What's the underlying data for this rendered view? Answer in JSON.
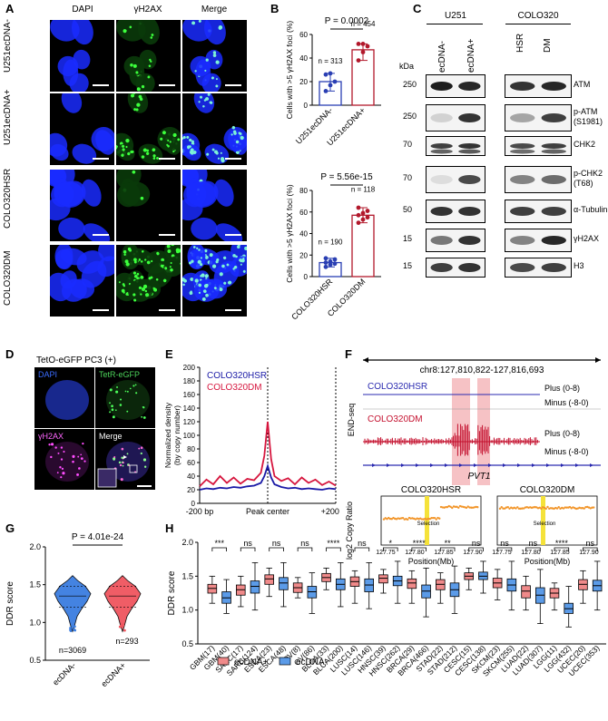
{
  "panel_letters": [
    "A",
    "B",
    "C",
    "D",
    "E",
    "F",
    "G",
    "H"
  ],
  "panel_a": {
    "column_headers": [
      "DAPI",
      "γH2AX",
      "Merge"
    ],
    "row_labels": [
      "U251ecDNA-",
      "U251ecDNA+",
      "COLO320HSR",
      "COLO320DM"
    ]
  },
  "panel_b": {
    "charts": [
      {
        "ylabel": "Cells with >5 γH2AX foci (%)",
        "ylim": [
          0,
          60
        ],
        "yticks": [
          "0",
          "20",
          "40",
          "60"
        ],
        "categories": [
          "U251ecDNA-",
          "U251ecDNA+"
        ],
        "means": [
          20,
          47
        ],
        "n_labels": [
          "n = 313",
          "n = 454"
        ],
        "pvalue": "P = 0.0002",
        "colors": [
          "#2a3fb3",
          "#b2182b"
        ],
        "points": [
          [
            12,
            17,
            20,
            26,
            27
          ],
          [
            38,
            45,
            50,
            52,
            52
          ]
        ]
      },
      {
        "ylabel": "Cells with >5 γH2AX foci (%)",
        "ylim": [
          0,
          80
        ],
        "yticks": [
          "0",
          "20",
          "40",
          "60",
          "80"
        ],
        "categories": [
          "COLO320HSR",
          "COLO320DM"
        ],
        "means": [
          13,
          57
        ],
        "n_labels": [
          "n = 190",
          "n = 118"
        ],
        "pvalue": "P = 5.56e-15",
        "colors": [
          "#2a3fb3",
          "#b2182b"
        ],
        "points": [
          [
            9,
            11,
            12,
            13,
            14,
            16,
            17
          ],
          [
            50,
            53,
            55,
            57,
            59,
            61,
            64
          ]
        ]
      }
    ]
  },
  "panel_c": {
    "group_headers": [
      "U251",
      "COLO320"
    ],
    "lane_labels": [
      "ecDNA-",
      "ecDNA+",
      "HSR",
      "DM"
    ],
    "kda_label": "kDa",
    "rows": [
      {
        "kda": "250",
        "label": "ATM"
      },
      {
        "kda": "250",
        "label": "p-ATM\n(S1981)"
      },
      {
        "kda": "70",
        "label": "CHK2"
      },
      {
        "kda": "70",
        "label": "p-CHK2\n(T68)"
      },
      {
        "kda": "50",
        "label": "α-Tubulin"
      },
      {
        "kda": "15",
        "label": "γH2AX"
      },
      {
        "kda": "15",
        "label": "H3"
      }
    ]
  },
  "panel_d": {
    "title": "TetO-eGFP PC3 (+)",
    "labels": [
      "DAPI",
      "TetR-eGFP",
      "γH2AX",
      "Merge"
    ]
  },
  "panel_e": {
    "chart_data": {
      "type": "line",
      "ylabel": "Normalized density\n(by copy number)",
      "ylim": [
        0,
        200
      ],
      "yticks": [
        0,
        20,
        40,
        60,
        80,
        100,
        120,
        140,
        160,
        180,
        200
      ],
      "xticklabels": [
        "-200 bp",
        "Peak center",
        "+200 bp"
      ],
      "legend": [
        "COLO320HSR",
        "COLO320DM"
      ],
      "legend_placement": "top-left",
      "colors": [
        "#1a1aa6",
        "#d6163e"
      ],
      "x": [
        -200,
        -180,
        -160,
        -140,
        -120,
        -100,
        -80,
        -60,
        -40,
        -20,
        -10,
        0,
        10,
        20,
        40,
        60,
        80,
        100,
        120,
        140,
        160,
        180,
        200
      ],
      "series": [
        {
          "name": "COLO320HSR",
          "values": [
            20,
            22,
            21,
            23,
            22,
            24,
            23,
            25,
            26,
            30,
            40,
            55,
            38,
            28,
            24,
            22,
            23,
            21,
            22,
            21,
            20,
            22,
            21
          ]
        },
        {
          "name": "COLO320DM",
          "values": [
            25,
            35,
            28,
            40,
            30,
            38,
            29,
            36,
            34,
            45,
            70,
            120,
            65,
            40,
            33,
            37,
            28,
            38,
            30,
            35,
            27,
            32,
            26
          ]
        }
      ]
    }
  },
  "panel_f": {
    "region": "chr8:127,810,822-127,816,693",
    "track_label": "END-seq",
    "tracks": [
      {
        "name": "COLO320HSR",
        "strands": [
          "Plus (0-8)",
          "Minus (-8-0)"
        ]
      },
      {
        "name": "COLO320DM",
        "strands": [
          "Plus (0-8)",
          "Minus (-8-0)"
        ]
      }
    ],
    "gene": "PVT1",
    "cn_plots": [
      {
        "title": "COLO320HSR",
        "selection_label": "Selection"
      },
      {
        "title": "COLO320DM",
        "selection_label": "Selection"
      }
    ],
    "cn_ylabel": "log2 Copy Ratio",
    "cn_xlabel": "Position(Mb)",
    "cn_xticks": [
      "127.75",
      "127.80",
      "127.85",
      "127.90"
    ]
  },
  "panel_g": {
    "pvalue": "P = 4.01e-24",
    "ylabel": "DDR score",
    "yticks": [
      "0.5",
      "1.0",
      "1.5",
      "2.0"
    ],
    "ylim": [
      0.5,
      2.0
    ],
    "categories": [
      "ecDNA-",
      "ecDNA+"
    ],
    "n_labels": [
      "n=3069",
      "n=293"
    ],
    "colors": [
      "#3b7de0",
      "#f0555e"
    ]
  },
  "panel_h": {
    "chart_data": {
      "type": "box",
      "ylabel": "DDR score",
      "ylim": [
        0.5,
        2.0
      ],
      "yticks": [
        "0.5",
        "1.0",
        "1.5",
        "2.0"
      ],
      "legend": [
        "ecDNA+",
        "ecDNA-"
      ],
      "colors": {
        "pos": "#f08a8a",
        "neg": "#5b9be8"
      },
      "categories": [
        "GBM(17)",
        "GBM(40)",
        "SARC(17)",
        "SARC(124)",
        "ESCA(23)",
        "ESCA(48)",
        "OV(8)",
        "OV(86)",
        "BLCA(33)",
        "BLCA(200)",
        "LUSC(14)",
        "LUSC(146)",
        "HNSC(39)",
        "HNSC(262)",
        "BRCA(29)",
        "BRCA(466)",
        "STAD(22)",
        "STAD(212)",
        "CESC(15)",
        "CESC(138)",
        "SKCM(23)",
        "SKCM(255)",
        "LUAD(22)",
        "LUAD(307)",
        "LGG(11)",
        "LGG(432)",
        "UCEC(20)",
        "UCEC(353)"
      ],
      "significance": [
        "***",
        "ns",
        "ns",
        "ns",
        "****",
        "ns",
        "*",
        "****",
        "**",
        "ns",
        "ns",
        "ns",
        "****",
        "ns"
      ],
      "medians": [
        1.32,
        1.18,
        1.3,
        1.35,
        1.46,
        1.4,
        1.33,
        1.27,
        1.48,
        1.38,
        1.42,
        1.37,
        1.47,
        1.43,
        1.4,
        1.28,
        1.38,
        1.3,
        1.5,
        1.5,
        1.4,
        1.37,
        1.28,
        1.22,
        1.25,
        1.02,
        1.38,
        1.36
      ],
      "q1": [
        1.25,
        1.1,
        1.22,
        1.25,
        1.38,
        1.3,
        1.26,
        1.18,
        1.42,
        1.3,
        1.35,
        1.27,
        1.4,
        1.36,
        1.32,
        1.18,
        1.3,
        1.2,
        1.45,
        1.45,
        1.33,
        1.28,
        1.18,
        1.1,
        1.18,
        0.95,
        1.3,
        1.28
      ],
      "q3": [
        1.38,
        1.27,
        1.37,
        1.43,
        1.52,
        1.48,
        1.4,
        1.35,
        1.54,
        1.46,
        1.49,
        1.46,
        1.52,
        1.5,
        1.46,
        1.37,
        1.45,
        1.4,
        1.55,
        1.56,
        1.47,
        1.46,
        1.36,
        1.33,
        1.32,
        1.1,
        1.45,
        1.44
      ],
      "min": [
        1.1,
        0.95,
        1.05,
        1.0,
        1.2,
        1.05,
        1.18,
        0.95,
        1.3,
        1.05,
        1.1,
        1.02,
        1.25,
        1.1,
        1.1,
        0.9,
        1.1,
        0.95,
        1.3,
        1.25,
        1.15,
        1.0,
        1.0,
        0.8,
        1.0,
        0.75,
        1.1,
        1.0
      ],
      "max": [
        1.5,
        1.45,
        1.5,
        1.7,
        1.62,
        1.7,
        1.48,
        1.55,
        1.62,
        1.7,
        1.58,
        1.7,
        1.6,
        1.72,
        1.58,
        1.62,
        1.55,
        1.65,
        1.62,
        1.72,
        1.6,
        1.72,
        1.5,
        1.6,
        1.4,
        1.35,
        1.58,
        1.72
      ]
    }
  }
}
